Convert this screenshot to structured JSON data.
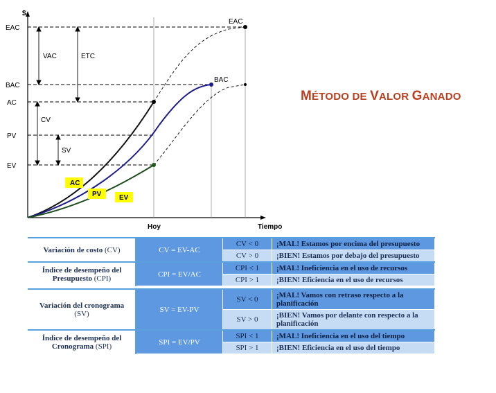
{
  "title": {
    "first_big": "M",
    "first_rest": "ÉTODO DE ",
    "second_big": "V",
    "second_rest": "ALOR ",
    "third_big": "G",
    "third_rest": "ANADO"
  },
  "chart_data": {
    "type": "line",
    "y_axis_label": "$",
    "x_axis_label": "Tiempo",
    "x_marker_label": "Hoy",
    "y_levels": [
      "EAC",
      "BAC",
      "AC",
      "PV",
      "EV"
    ],
    "point_labels": {
      "eac": "EAC",
      "bac": "BAC"
    },
    "dimension_labels": {
      "vac": "VAC",
      "etc": "ETC",
      "cv": "CV",
      "sv": "SV"
    },
    "curve_tags": [
      {
        "label": "AC",
        "color": "#ffff00"
      },
      {
        "label": "PV",
        "color": "#ffff00"
      },
      {
        "label": "EV",
        "color": "#ffff00"
      }
    ],
    "series_colors": {
      "ac": "#111111",
      "pv": "#1c1c8a",
      "ev": "#1f4d1f"
    }
  },
  "table": {
    "rows": [
      {
        "name": "Variación de costo",
        "paren": "(CV)",
        "formula": "CV = EV-AC",
        "conds": [
          {
            "cond": "CV < 0",
            "msg": "¡MAL! Estamos por encima del presupuesto"
          },
          {
            "cond": "CV > 0",
            "msg": "¡BIEN! Estamos por debajo del presupuesto"
          }
        ]
      },
      {
        "name": "Índice de desempeño del Presupuesto",
        "paren": "(CPI)",
        "formula": "CPI = EV/AC",
        "conds": [
          {
            "cond": "CPI < 1",
            "msg": "¡MAL! Ineficiencia en el uso de recursos"
          },
          {
            "cond": "CPI > 1",
            "msg": "¡BIEN! Eficiencia en el uso de recursos"
          }
        ]
      },
      {
        "name": "Variación del cronograma",
        "paren": "(SV)",
        "formula": "SV = EV-PV",
        "conds": [
          {
            "cond": "SV < 0",
            "msg": "¡MAL! Vamos con retraso respecto a la planificación"
          },
          {
            "cond": "SV > 0",
            "msg": "¡BIEN! Vamos por delante con respecto a la planificación"
          }
        ]
      },
      {
        "name": "Índice de desempeño del Cronograma",
        "paren": "(SPI)",
        "formula": "SPI = EV/PV",
        "conds": [
          {
            "cond": "SPI < 1",
            "msg": "¡MAL! Ineficiencia en el uso del tiempo"
          },
          {
            "cond": "SPI > 1",
            "msg": "¡BIEN! Eficiencia en el uso del tiempo"
          }
        ]
      }
    ]
  }
}
